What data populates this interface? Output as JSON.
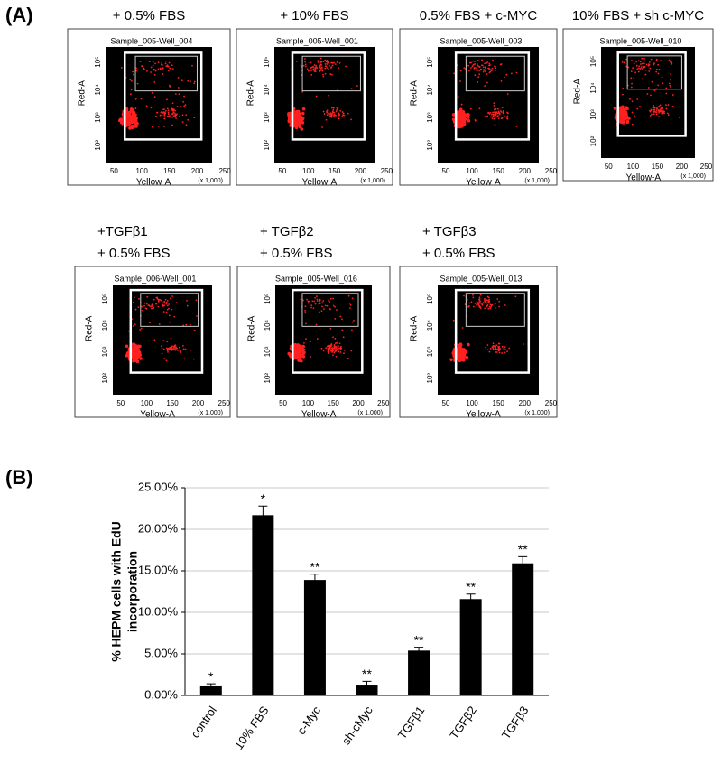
{
  "panel_a": {
    "label": "(A)",
    "plots": [
      {
        "title": [
          "+ 0.5% FBS"
        ],
        "sample": "Sample_005-Well_004"
      },
      {
        "title": [
          "+ 10% FBS"
        ],
        "sample": "Sample_005-Well_001"
      },
      {
        "title": [
          "0.5% FBS + c-MYC"
        ],
        "sample": "Sample_005-Well_003"
      },
      {
        "title": [
          "10% FBS + sh c-MYC"
        ],
        "sample": "Sample_005-Well_010"
      },
      {
        "title": [
          "+TGFβ1",
          "+ 0.5% FBS"
        ],
        "sample": "Sample_006-Well_001"
      },
      {
        "title": [
          "+ TGFβ2",
          "+ 0.5% FBS"
        ],
        "sample": "Sample_005-Well_016"
      },
      {
        "title": [
          "+ TGFβ3",
          "+ 0.5% FBS"
        ],
        "sample": "Sample_005-Well_013"
      }
    ],
    "y_label": "Red-A",
    "x_label": "Yellow-A",
    "x_unit": "(x 1,000)",
    "xticks": [
      "50",
      "100",
      "150",
      "200",
      "250"
    ],
    "yticks": [
      "10²",
      "10³",
      "10⁴",
      "10⁵"
    ]
  },
  "chart_data": {
    "type": "bar",
    "label": "(B)",
    "y_label": [
      "% HEPM cells with EdU",
      "incorporation"
    ],
    "categories": [
      "control",
      "10% FBS",
      "c-Myc",
      "sh-cMyc",
      "TGFβ1",
      "TGFβ2",
      "TGFβ3"
    ],
    "values": [
      1.2,
      21.7,
      13.9,
      1.3,
      5.4,
      11.6,
      15.9
    ],
    "errors": [
      0.2,
      1.1,
      0.7,
      0.4,
      0.4,
      0.6,
      0.8
    ],
    "annotations": [
      "*",
      "*",
      "**",
      "**",
      "**",
      "**",
      "**"
    ],
    "color": "#000000",
    "ylim": [
      0,
      25
    ],
    "yticks": [
      {
        "value": 0,
        "label": "0.00%"
      },
      {
        "value": 5,
        "label": "5.00%"
      },
      {
        "value": 10,
        "label": "10.00%"
      },
      {
        "value": 15,
        "label": "15.00%"
      },
      {
        "value": 20,
        "label": "20.00%"
      },
      {
        "value": 25,
        "label": "25.00%"
      }
    ],
    "grid": true
  }
}
